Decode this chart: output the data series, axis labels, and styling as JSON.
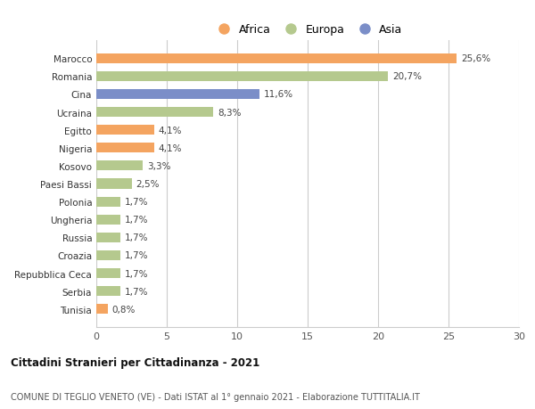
{
  "categories": [
    "Marocco",
    "Romania",
    "Cina",
    "Ucraina",
    "Egitto",
    "Nigeria",
    "Kosovo",
    "Paesi Bassi",
    "Polonia",
    "Ungheria",
    "Russia",
    "Croazia",
    "Repubblica Ceca",
    "Serbia",
    "Tunisia"
  ],
  "values": [
    25.6,
    20.7,
    11.6,
    8.3,
    4.1,
    4.1,
    3.3,
    2.5,
    1.7,
    1.7,
    1.7,
    1.7,
    1.7,
    1.7,
    0.8
  ],
  "labels": [
    "25,6%",
    "20,7%",
    "11,6%",
    "8,3%",
    "4,1%",
    "4,1%",
    "3,3%",
    "2,5%",
    "1,7%",
    "1,7%",
    "1,7%",
    "1,7%",
    "1,7%",
    "1,7%",
    "0,8%"
  ],
  "continent": [
    "Africa",
    "Europa",
    "Asia",
    "Europa",
    "Africa",
    "Africa",
    "Europa",
    "Europa",
    "Europa",
    "Europa",
    "Europa",
    "Europa",
    "Europa",
    "Europa",
    "Africa"
  ],
  "colors": {
    "Africa": "#F4A460",
    "Europa": "#B5C98E",
    "Asia": "#7B8EC8"
  },
  "xlim": [
    0,
    30
  ],
  "xticks": [
    0,
    5,
    10,
    15,
    20,
    25,
    30
  ],
  "title1": "Cittadini Stranieri per Cittadinanza - 2021",
  "title2": "COMUNE DI TEGLIO VENETO (VE) - Dati ISTAT al 1° gennaio 2021 - Elaborazione TUTTITALIA.IT",
  "background_color": "#ffffff",
  "grid_color": "#cccccc",
  "bar_height": 0.55
}
